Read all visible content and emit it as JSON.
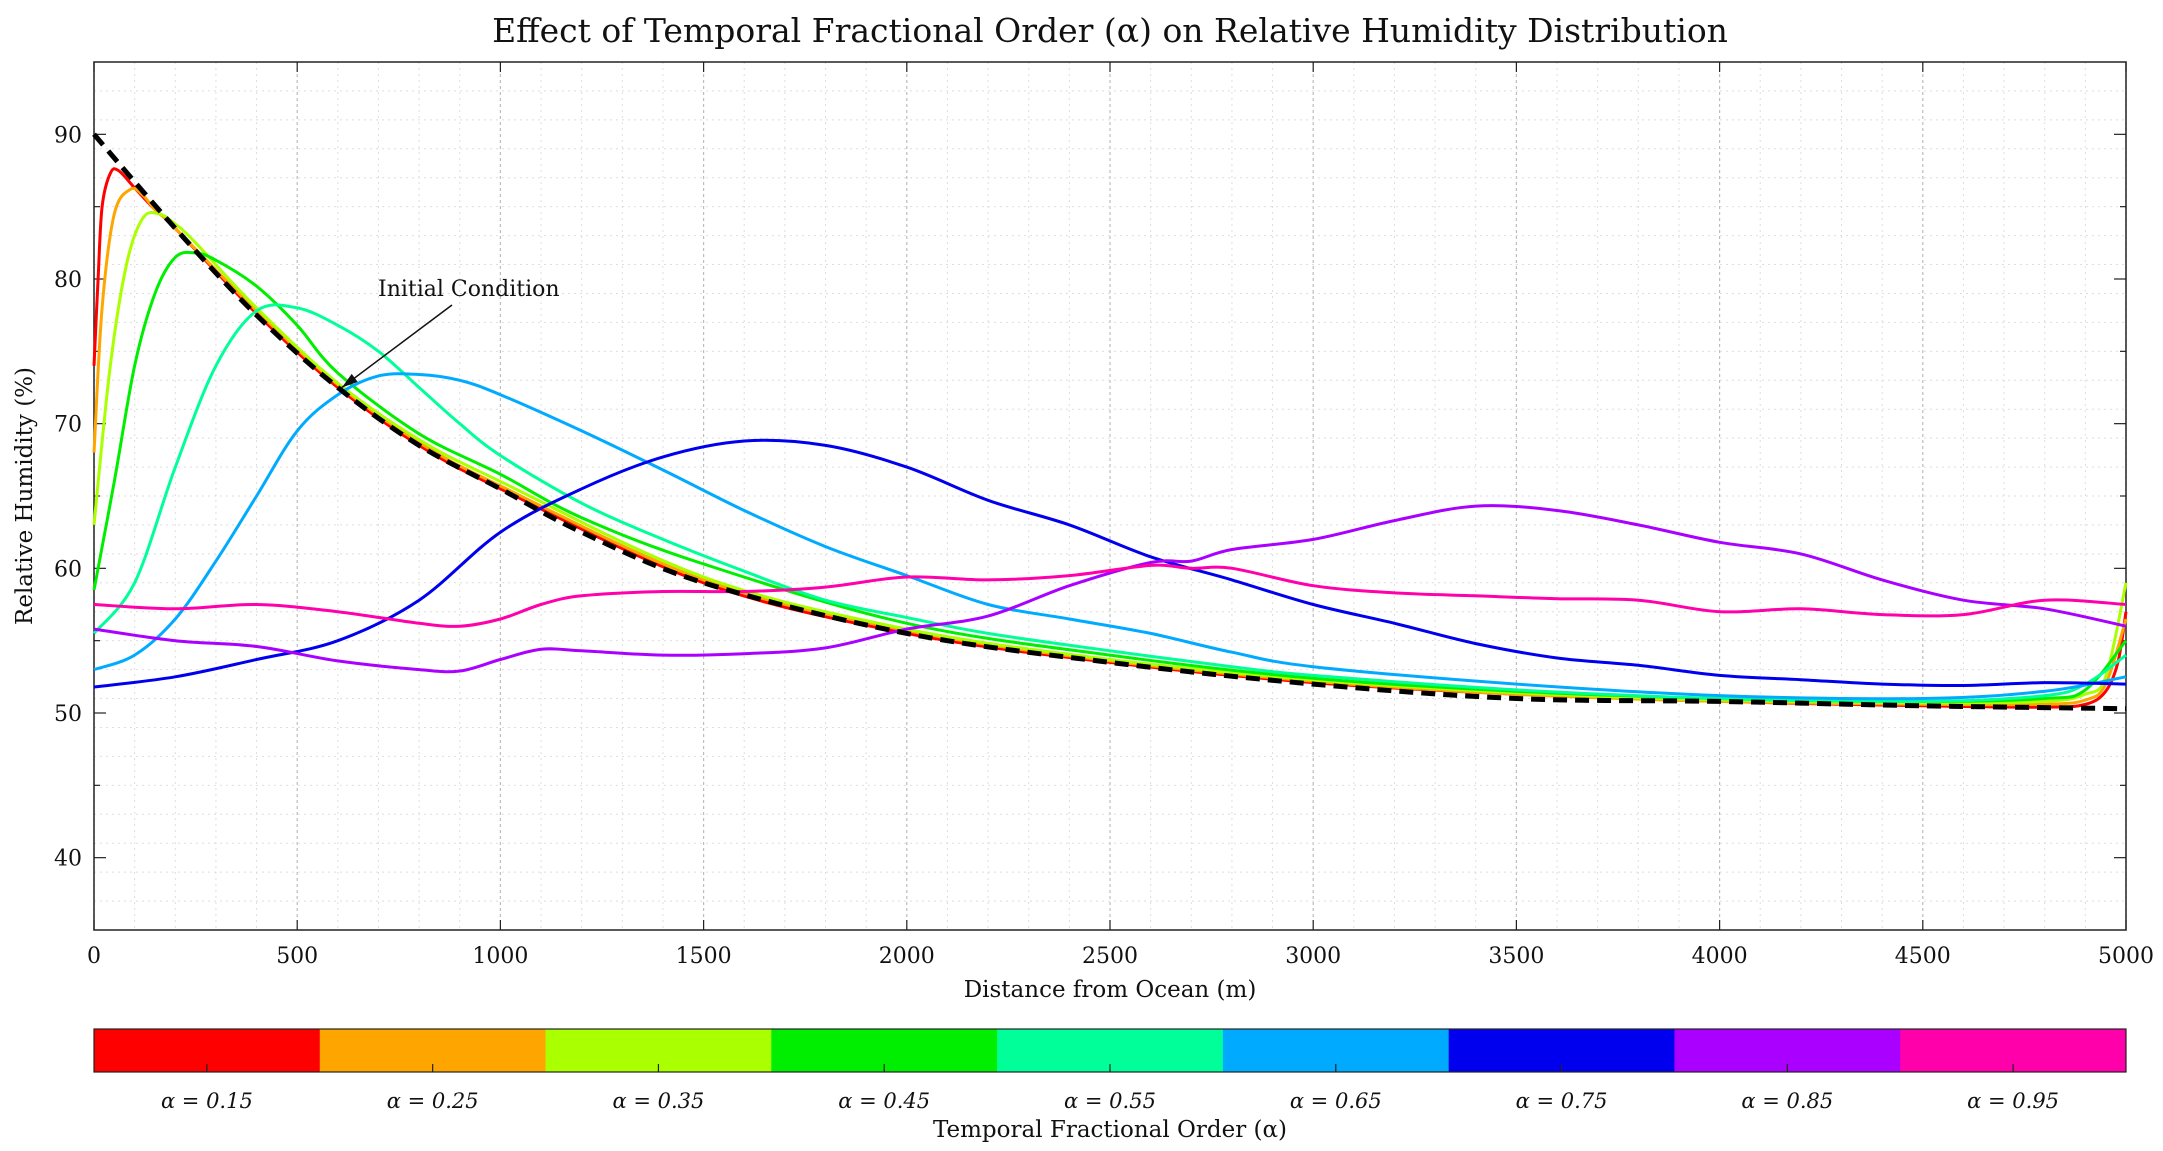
{
  "chart_data": {
    "type": "line",
    "title": "Effect of Temporal Fractional Order (α) on Relative Humidity Distribution",
    "xlabel": "Distance from Ocean (m)",
    "ylabel": "Relative Humidity (%)",
    "xlim": [
      0,
      5000
    ],
    "ylim": [
      35,
      95
    ],
    "xticks": [
      0,
      500,
      1000,
      1500,
      2000,
      2500,
      3000,
      3500,
      4000,
      4500,
      5000
    ],
    "yticks": [
      40,
      50,
      60,
      70,
      80,
      90
    ],
    "grid": true,
    "annotation": {
      "text": "Initial Condition",
      "target": [
        610,
        72.5
      ]
    },
    "series": [
      {
        "name": "Initial Condition",
        "color": "#000000",
        "dashed": true,
        "x": [
          0,
          200,
          400,
          600,
          800,
          1000,
          1200,
          1500,
          2000,
          2500,
          3000,
          3500,
          4000,
          4500,
          5000
        ],
        "y": [
          90,
          83.5,
          77.5,
          72.5,
          68.5,
          65.5,
          62.5,
          59,
          55.5,
          53.5,
          52,
          51,
          50.8,
          50.5,
          50.3
        ]
      },
      {
        "name": "α = 0.15",
        "color": "#ff0000",
        "x": [
          0,
          10,
          20,
          40,
          60,
          100,
          150,
          200,
          400,
          600,
          800,
          1000,
          1500,
          2000,
          2500,
          3000,
          3500,
          4000,
          4500,
          4800,
          4900,
          4950,
          4980,
          5000
        ],
        "y": [
          74,
          80,
          85,
          87.3,
          87.5,
          86.3,
          84.8,
          83.5,
          77.6,
          72.5,
          68.5,
          65.5,
          59,
          55.5,
          53.5,
          52.1,
          51.3,
          50.8,
          50.5,
          50.4,
          50.6,
          51.5,
          53.5,
          57
        ]
      },
      {
        "name": "α = 0.25",
        "color": "#ffa500",
        "x": [
          0,
          20,
          50,
          90,
          120,
          150,
          200,
          400,
          600,
          800,
          1000,
          1500,
          2000,
          2500,
          3000,
          3500,
          4000,
          4500,
          4800,
          4900,
          4950,
          5000
        ],
        "y": [
          68,
          78,
          84.5,
          86.2,
          85.8,
          84.8,
          83.5,
          77.8,
          72.7,
          68.7,
          65.7,
          59.2,
          55.7,
          53.6,
          52.2,
          51.3,
          50.8,
          50.6,
          50.6,
          50.9,
          52,
          56.5
        ]
      },
      {
        "name": "α = 0.35",
        "color": "#aaff00",
        "x": [
          0,
          40,
          80,
          120,
          160,
          200,
          250,
          400,
          600,
          800,
          1000,
          1500,
          2000,
          2500,
          3000,
          3500,
          4000,
          4500,
          4800,
          4900,
          4950,
          5000
        ],
        "y": [
          63,
          74,
          81,
          84.2,
          84.5,
          83.8,
          82.5,
          78,
          72.8,
          68.9,
          66,
          59.4,
          55.8,
          53.7,
          52.3,
          51.4,
          50.9,
          50.7,
          50.8,
          51.3,
          52.5,
          59
        ]
      },
      {
        "name": "α = 0.45",
        "color": "#00ee00",
        "x": [
          0,
          50,
          100,
          150,
          200,
          250,
          300,
          400,
          500,
          600,
          800,
          1000,
          1200,
          1500,
          2000,
          2500,
          3000,
          3500,
          4000,
          4500,
          4800,
          4900,
          5000
        ],
        "y": [
          58.5,
          66,
          74,
          79,
          81.5,
          81.8,
          81.3,
          79.5,
          76.8,
          73.5,
          69.3,
          66.5,
          63.5,
          60.3,
          56.2,
          54,
          52.4,
          51.5,
          51,
          50.8,
          51,
          51.6,
          55
        ]
      },
      {
        "name": "α = 0.55",
        "color": "#00ff99",
        "x": [
          0,
          100,
          200,
          300,
          400,
          500,
          600,
          700,
          800,
          900,
          1000,
          1200,
          1400,
          1600,
          1800,
          2000,
          2200,
          2500,
          2800,
          3000,
          3500,
          4000,
          4500,
          4800,
          4900,
          5000
        ],
        "y": [
          55.5,
          59,
          67,
          74,
          77.8,
          78,
          76.8,
          75,
          72.5,
          70,
          67.8,
          64.5,
          62,
          59.8,
          57.8,
          56.6,
          55.5,
          54.3,
          53.2,
          52.6,
          51.6,
          51,
          50.8,
          51.2,
          52,
          54
        ]
      },
      {
        "name": "α = 0.65",
        "color": "#00aaff",
        "x": [
          0,
          100,
          200,
          300,
          400,
          500,
          600,
          700,
          800,
          900,
          1000,
          1200,
          1400,
          1600,
          1800,
          2000,
          2200,
          2400,
          2600,
          2800,
          3000,
          3500,
          4000,
          4500,
          4800,
          5000
        ],
        "y": [
          53,
          54,
          56.5,
          60.5,
          65,
          69.5,
          72,
          73.3,
          73.4,
          73,
          72,
          69.5,
          66.8,
          64,
          61.5,
          59.5,
          57.5,
          56.5,
          55.5,
          54.2,
          53.2,
          52,
          51.2,
          51,
          51.5,
          52.5
        ]
      },
      {
        "name": "α = 0.75",
        "color": "#0000ee",
        "x": [
          0,
          200,
          400,
          600,
          800,
          1000,
          1200,
          1400,
          1600,
          1800,
          2000,
          2200,
          2400,
          2600,
          2800,
          3000,
          3200,
          3400,
          3600,
          3800,
          4000,
          4200,
          4400,
          4600,
          4800,
          5000
        ],
        "y": [
          51.8,
          52.5,
          53.7,
          55,
          57.8,
          62.5,
          65.5,
          67.7,
          68.8,
          68.5,
          67,
          64.7,
          63,
          60.8,
          59.2,
          57.5,
          56.2,
          54.8,
          53.8,
          53.3,
          52.6,
          52.3,
          52,
          51.9,
          52.1,
          52
        ]
      },
      {
        "name": "α = 0.85",
        "color": "#aa00ff",
        "x": [
          0,
          200,
          400,
          600,
          800,
          900,
          1000,
          1100,
          1200,
          1400,
          1600,
          1800,
          2000,
          2200,
          2400,
          2600,
          2700,
          2800,
          3000,
          3200,
          3400,
          3600,
          3800,
          4000,
          4200,
          4400,
          4600,
          4800,
          5000
        ],
        "y": [
          55.8,
          55,
          54.6,
          53.6,
          53,
          52.9,
          53.7,
          54.4,
          54.3,
          54,
          54.1,
          54.5,
          55.8,
          56.7,
          58.8,
          60.4,
          60.5,
          61.3,
          62,
          63.3,
          64.3,
          64,
          63,
          61.8,
          61,
          59.2,
          57.8,
          57.2,
          56
        ]
      },
      {
        "name": "α = 0.95",
        "color": "#ff00aa",
        "x": [
          0,
          200,
          400,
          600,
          800,
          900,
          1000,
          1100,
          1200,
          1400,
          1600,
          1800,
          2000,
          2200,
          2400,
          2600,
          2700,
          2800,
          3000,
          3200,
          3400,
          3600,
          3800,
          4000,
          4200,
          4400,
          4600,
          4800,
          5000
        ],
        "y": [
          57.5,
          57.2,
          57.5,
          57,
          56.2,
          56,
          56.5,
          57.5,
          58.1,
          58.4,
          58.4,
          58.7,
          59.4,
          59.2,
          59.5,
          60.2,
          60,
          60,
          58.8,
          58.3,
          58.1,
          57.9,
          57.8,
          57,
          57.2,
          56.8,
          56.8,
          57.8,
          57.5
        ]
      }
    ],
    "colorbar": {
      "title": "Temporal Fractional Order (α)",
      "labels": [
        "α = 0.15",
        "α = 0.25",
        "α = 0.35",
        "α = 0.45",
        "α = 0.55",
        "α = 0.65",
        "α = 0.75",
        "α = 0.85",
        "α = 0.95"
      ],
      "colors": [
        "#ff0000",
        "#ffa500",
        "#aaff00",
        "#00ee00",
        "#00ff99",
        "#00aaff",
        "#0000ee",
        "#aa00ff",
        "#ff00aa"
      ]
    }
  }
}
